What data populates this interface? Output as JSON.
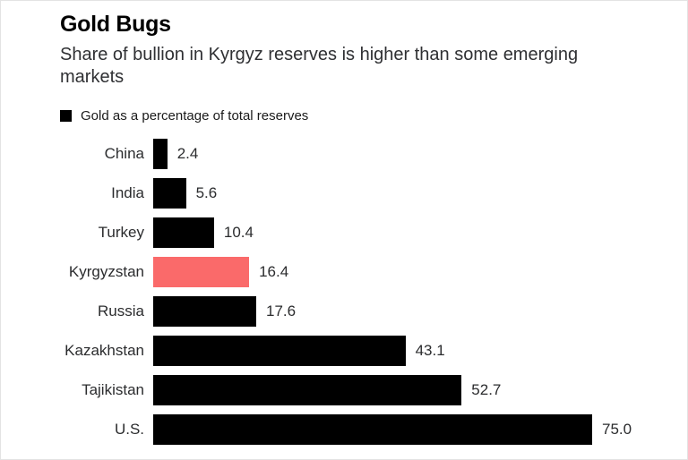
{
  "chart": {
    "title": "Gold Bugs",
    "subtitle": "Share of bullion in Kyrgyz reserves is higher than some emerging markets",
    "legend_label": "Gold as a percentage of total reserves"
  },
  "chart_data": {
    "type": "bar",
    "orientation": "horizontal",
    "title": "Gold Bugs",
    "subtitle": "Share of bullion in Kyrgyz reserves is higher than some emerging markets",
    "legend": [
      "Gold as a percentage of total reserves"
    ],
    "legend_position": "top-left",
    "categories": [
      "China",
      "India",
      "Turkey",
      "Kyrgyzstan",
      "Russia",
      "Kazakhstan",
      "Tajikistan",
      "U.S."
    ],
    "values": [
      2.4,
      5.6,
      10.4,
      16.4,
      17.6,
      43.1,
      52.7,
      75.0
    ],
    "value_labels": [
      "2.4",
      "5.6",
      "10.4",
      "16.4",
      "17.6",
      "43.1",
      "52.7",
      "75.0"
    ],
    "xlabel": "",
    "ylabel": "",
    "xlim": [
      0,
      75
    ],
    "grid": false,
    "bar_color": "#000000",
    "highlight_category": "Kyrgyzstan",
    "highlight_color": "#fa6a6a"
  }
}
